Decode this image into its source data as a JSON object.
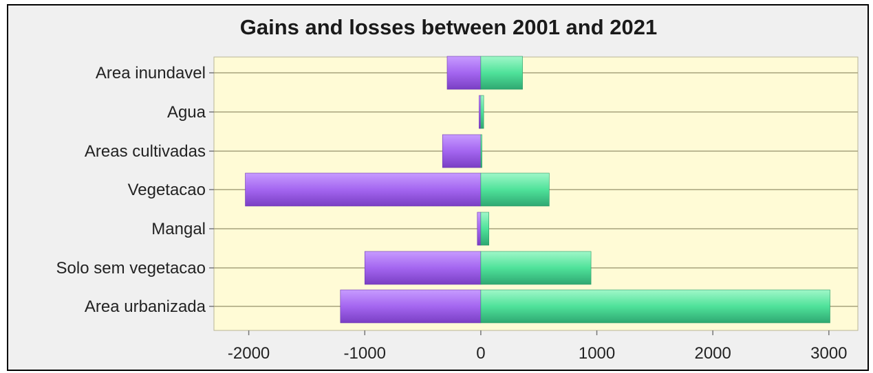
{
  "chart_data": {
    "type": "bar",
    "orientation": "horizontal",
    "title": "Gains and losses between 2001 and 2021",
    "xlabel": "",
    "ylabel": "",
    "categories": [
      "Area inundavel",
      "Agua",
      "Areas cultivadas",
      "Vegetacao",
      "Mangal",
      "Solo sem vegetacao",
      "Area urbanizada"
    ],
    "series": [
      {
        "values": [
          -290,
          -15,
          -330,
          -2030,
          -30,
          -1000,
          -1210
        ]
      },
      {
        "values": [
          360,
          25,
          10,
          590,
          70,
          950,
          3010
        ]
      }
    ],
    "xlim": [
      -2300,
      3250
    ],
    "xticks": [
      -2000,
      -1000,
      0,
      1000,
      2000,
      3000
    ],
    "grid": "horizontal",
    "colors": {
      "losses": "#a466f0",
      "gains": "#52e8a0",
      "plot_bg": "#fffbd6",
      "grid": "#a5a27c"
    }
  }
}
